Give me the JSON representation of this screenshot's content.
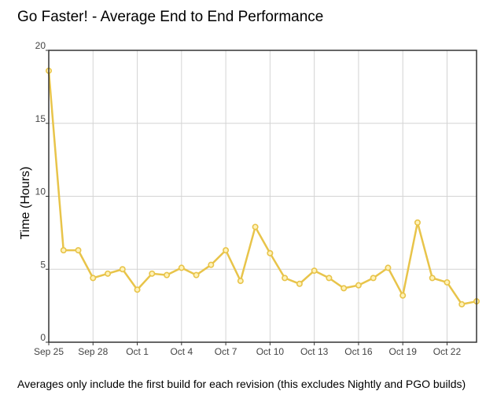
{
  "chart_data": {
    "type": "line",
    "title": "Go Faster! - Average End to End Performance",
    "ylabel": "Time (Hours)",
    "xlabel": "",
    "caption": "Averages only include the first build for each revision (this excludes Nightly and PGO builds)",
    "ylim": [
      0,
      20
    ],
    "yticks": [
      0,
      5,
      10,
      15,
      20
    ],
    "x_range": [
      0,
      29
    ],
    "xticks": [
      {
        "x": 0,
        "label": "Sep 25"
      },
      {
        "x": 3,
        "label": "Sep 28"
      },
      {
        "x": 6,
        "label": "Oct 1"
      },
      {
        "x": 9,
        "label": "Oct 4"
      },
      {
        "x": 12,
        "label": "Oct 7"
      },
      {
        "x": 15,
        "label": "Oct 10"
      },
      {
        "x": 18,
        "label": "Oct 13"
      },
      {
        "x": 21,
        "label": "Oct 16"
      },
      {
        "x": 24,
        "label": "Oct 19"
      },
      {
        "x": 27,
        "label": "Oct 22"
      }
    ],
    "x": [
      0,
      1,
      2,
      3,
      4,
      5,
      6,
      7,
      8,
      9,
      10,
      11,
      12,
      13,
      14,
      15,
      16,
      17,
      18,
      19,
      20,
      21,
      22,
      23,
      24,
      25,
      26,
      27,
      28,
      29
    ],
    "series": [
      {
        "name": "Average End to End",
        "color": "#e8c44a",
        "values": [
          18.6,
          6.3,
          6.3,
          4.4,
          4.7,
          5.0,
          3.6,
          4.7,
          4.6,
          5.1,
          4.6,
          5.3,
          6.3,
          4.2,
          7.9,
          6.1,
          4.4,
          4.0,
          4.9,
          4.4,
          3.7,
          3.9,
          4.4,
          5.1,
          3.2,
          8.2,
          4.4,
          4.1,
          2.6,
          2.8
        ]
      }
    ],
    "grid": true
  }
}
